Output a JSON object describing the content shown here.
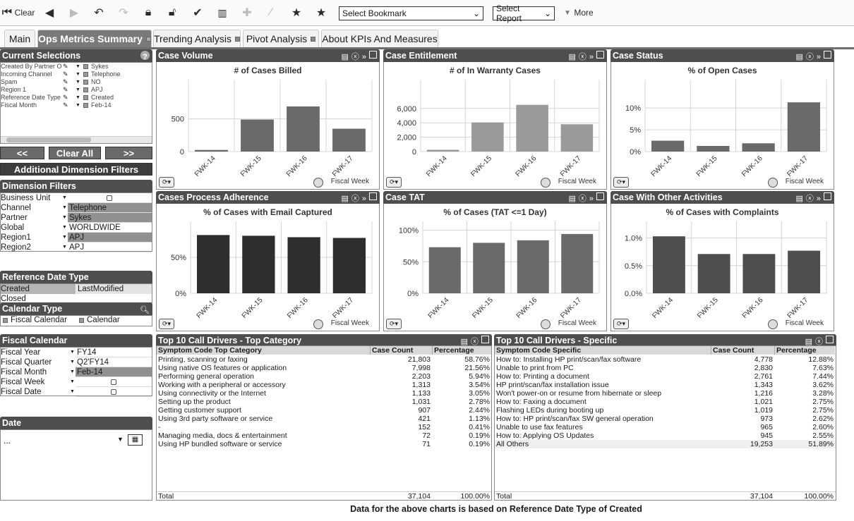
{
  "toolbar": {
    "clear_label": "Clear",
    "bookmark_placeholder": "Select Bookmark",
    "report_placeholder": "Select Report",
    "more_label": "More"
  },
  "tabs": [
    {
      "label": "Main"
    },
    {
      "label": "Ops Metrics Summary"
    },
    {
      "label": "Trending Analysis"
    },
    {
      "label": "Pivot Analysis"
    },
    {
      "label": "About KPIs And Measures"
    }
  ],
  "current_selections": {
    "title": "Current Selections",
    "items": [
      {
        "field": "Created By Partner Or",
        "value": "Sykes"
      },
      {
        "field": "Incoming Channel",
        "value": "Telephone"
      },
      {
        "field": "Spam",
        "value": "NO"
      },
      {
        "field": "Region 1",
        "value": "APJ"
      },
      {
        "field": "Reference Date Type",
        "value": "Created"
      },
      {
        "field": "Fiscal Month",
        "value": "Feb-14"
      }
    ]
  },
  "nav": {
    "prev": "<<",
    "clear_all": "Clear All",
    "next": ">>",
    "additional": "Additional Dimension Filters"
  },
  "dimension_filters": {
    "title": "Dimension Filters",
    "items": [
      {
        "label": "Business Unit",
        "value": ""
      },
      {
        "label": "Channel",
        "value": "Telephone"
      },
      {
        "label": "Partner",
        "value": "Sykes"
      },
      {
        "label": "Global",
        "value": "WORLDWIDE"
      },
      {
        "label": "Region1",
        "value": "APJ"
      },
      {
        "label": "Region2",
        "value": "APJ"
      }
    ]
  },
  "reference_date": {
    "title": "Reference Date Type",
    "items": [
      {
        "a": "Created",
        "b": "LastModified"
      },
      {
        "a": "Closed",
        "b": ""
      }
    ]
  },
  "calendar_type": {
    "title": "Calendar Type",
    "options": [
      "Fiscal Calendar",
      "Calendar"
    ]
  },
  "fiscal_calendar": {
    "title": "Fiscal Calendar",
    "items": [
      {
        "label": "Fiscal Year",
        "value": "FY14"
      },
      {
        "label": "Fiscal Quarter",
        "value": "Q2'FY14"
      },
      {
        "label": "Fiscal Month",
        "value": "Feb-14"
      },
      {
        "label": "Fiscal Week",
        "value": ""
      },
      {
        "label": "Fiscal Date",
        "value": ""
      }
    ]
  },
  "date_panel": {
    "title": "Date",
    "value": "..."
  },
  "colors": {
    "header": "#4e4e4e",
    "bar_dark": "#2e2e2e",
    "bar_mid": "#6a6a6a",
    "bar_light": "#9a9a9a"
  },
  "chart_data": [
    {
      "panel": "Case Volume",
      "title": "# of Cases Billed",
      "type": "bar",
      "categories": [
        "FWK-14",
        "FWK-15",
        "FWK-16",
        "FWK-17"
      ],
      "values": [
        25,
        490,
        690,
        350
      ],
      "ylim": [
        0,
        1100
      ],
      "yticks": [
        0,
        500
      ],
      "ytick_labels": [
        "0",
        "500"
      ],
      "xlabel": "Fiscal Week",
      "color": "#6a6a6a"
    },
    {
      "panel": "Case Entitlement",
      "title": "# of In Warranty Cases",
      "type": "bar",
      "categories": [
        "FWK-14",
        "FWK-15",
        "FWK-16",
        "FWK-17"
      ],
      "values": [
        250,
        4050,
        6500,
        3800
      ],
      "ylim": [
        0,
        10000
      ],
      "yticks": [
        0,
        2000,
        4000,
        6000
      ],
      "ytick_labels": [
        "0",
        "2,000",
        "4,000",
        "6,000"
      ],
      "xlabel": "Fiscal Week",
      "color": "#9a9a9a"
    },
    {
      "panel": "Case Status",
      "title": "% of Open Cases",
      "type": "bar",
      "categories": [
        "FWK-14",
        "FWK-15",
        "FWK-16",
        "FWK-17"
      ],
      "values": [
        2.5,
        1.3,
        1.9,
        11.3
      ],
      "ylim": [
        0,
        16.5
      ],
      "yticks": [
        0,
        5,
        10
      ],
      "ytick_labels": [
        "0%",
        "5%",
        "10%"
      ],
      "xlabel": "Fiscal Week",
      "color": "#6a6a6a"
    },
    {
      "panel": "Cases Process Adherence",
      "title": "% of Cases with Email Captured",
      "type": "bar",
      "categories": [
        "FWK-14",
        "FWK-15",
        "FWK-16",
        "FWK-17"
      ],
      "values": [
        81,
        80,
        78,
        77
      ],
      "ylim": [
        0,
        100
      ],
      "yticks": [
        0,
        50
      ],
      "ytick_labels": [
        "0%",
        "50%"
      ],
      "xlabel": "Fiscal Week",
      "color": "#2e2e2e"
    },
    {
      "panel": "Case TAT",
      "title": "% of Cases (TAT <=1 Day)",
      "type": "bar",
      "categories": [
        "FWK-14",
        "FWK-15",
        "FWK-16",
        "FWK-17"
      ],
      "values": [
        73,
        80,
        84,
        94
      ],
      "ylim": [
        0,
        114
      ],
      "yticks": [
        0,
        50,
        100
      ],
      "ytick_labels": [
        "0%",
        "50%",
        "100%"
      ],
      "xlabel": "Fiscal Week",
      "color": "#6a6a6a"
    },
    {
      "panel": "Case With Other Activities",
      "title": "% of Cases with Complaints",
      "type": "bar",
      "categories": [
        "FWK-14",
        "FWK-15",
        "FWK-16",
        "FWK-17"
      ],
      "values": [
        1.03,
        0.71,
        0.71,
        0.77
      ],
      "ylim": [
        0,
        1.3
      ],
      "yticks": [
        0,
        0.5,
        1.0
      ],
      "ytick_labels": [
        "0.0%",
        "0.5%",
        "1.0%"
      ],
      "xlabel": "Fiscal Week",
      "color": "#4e4e4e"
    }
  ],
  "top_category": {
    "title": "Top 10 Call Drivers - Top Category",
    "headers": [
      "Symptom Code Top Category",
      "Case Count",
      "Percentage"
    ],
    "rows": [
      [
        "Printing, scanning or faxing",
        "21,803",
        "58.76%"
      ],
      [
        "Using native OS features or application",
        "7,998",
        "21.56%"
      ],
      [
        "Performing general operation",
        "2,203",
        "5.94%"
      ],
      [
        "Working with a peripheral or accessory",
        "1,313",
        "3.54%"
      ],
      [
        "Using connectivity or the Internet",
        "1,133",
        "3.05%"
      ],
      [
        "Setting up the product",
        "1,031",
        "2.78%"
      ],
      [
        "Getting customer support",
        "907",
        "2.44%"
      ],
      [
        "Using 3rd party software or service",
        "421",
        "1.13%"
      ],
      [
        "-",
        "152",
        "0.41%"
      ],
      [
        "Managing media, docs & entertainment",
        "72",
        "0.19%"
      ],
      [
        "Using HP bundled software or service",
        "71",
        "0.19%"
      ]
    ],
    "total": [
      "Total",
      "37,104",
      "100.00%"
    ]
  },
  "specific": {
    "title": "Top 10 Call Drivers - Specific",
    "headers": [
      "Symptom Code Specific",
      "Case Count",
      "Percentage"
    ],
    "rows": [
      [
        "How to: Installing HP print/scan/fax software",
        "4,778",
        "12.88%"
      ],
      [
        "Unable to print from PC",
        "2,830",
        "7.63%"
      ],
      [
        "How to: Printing a document",
        "2,761",
        "7.44%"
      ],
      [
        "HP print/scan/fax installation issue",
        "1,343",
        "3.62%"
      ],
      [
        "Won't power-on or resume from hibernate or sleep",
        "1,216",
        "3.28%"
      ],
      [
        "How to: Faxing a document",
        "1,021",
        "2.75%"
      ],
      [
        "Flashing LEDs during booting up",
        "1,019",
        "2.75%"
      ],
      [
        "How to: HP print/scan/fax SW general operation",
        "973",
        "2.62%"
      ],
      [
        "Unable to use fax features",
        "965",
        "2.60%"
      ],
      [
        "How to: Applying OS Updates",
        "945",
        "2.55%"
      ],
      [
        "All Others",
        "19,253",
        "51.89%"
      ]
    ],
    "total": [
      "Total",
      "37,104",
      "100.00%"
    ]
  },
  "footer_note": "Data for the above charts is based on Reference Date Type of  Created"
}
